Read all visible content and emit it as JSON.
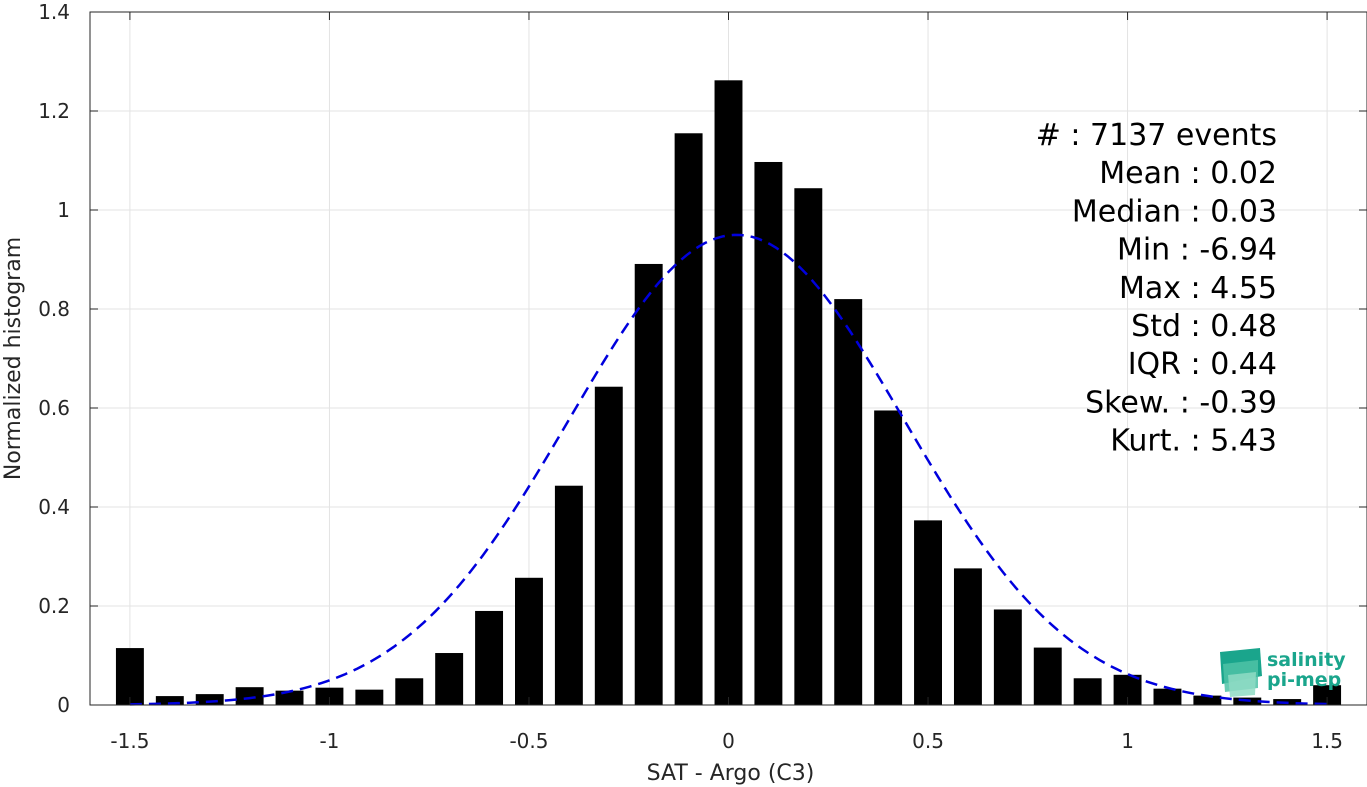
{
  "chart_data": {
    "type": "bar",
    "xlabel": "SAT - Argo (C3)",
    "ylabel": "Normalized histogram",
    "xlim": [
      -1.6,
      1.6
    ],
    "ylim": [
      0,
      1.4
    ],
    "xticks": [
      -1.5,
      -1,
      -0.5,
      0,
      0.5,
      1,
      1.5
    ],
    "xtick_labels": [
      "-1.5",
      "-1",
      "-0.5",
      "0",
      "0.5",
      "1",
      "1.5"
    ],
    "yticks": [
      0,
      0.2,
      0.4,
      0.6,
      0.8,
      1,
      1.2,
      1.4
    ],
    "ytick_labels": [
      "0",
      "0.2",
      "0.4",
      "0.6",
      "0.8",
      "1",
      "1.2",
      "1.4"
    ],
    "grid": true,
    "bar_width": 0.07,
    "bar_color": "#000000",
    "fit_color": "#0000dd",
    "bars": {
      "x": [
        -1.5,
        -1.4,
        -1.3,
        -1.2,
        -1.1,
        -1.0,
        -0.9,
        -0.8,
        -0.7,
        -0.6,
        -0.5,
        -0.4,
        -0.3,
        -0.2,
        -0.1,
        0.0,
        0.1,
        0.2,
        0.3,
        0.4,
        0.5,
        0.6,
        0.7,
        0.8,
        0.9,
        1.0,
        1.1,
        1.2,
        1.3,
        1.4,
        1.5
      ],
      "values": [
        0.115,
        0.018,
        0.022,
        0.036,
        0.029,
        0.035,
        0.031,
        0.054,
        0.105,
        0.19,
        0.257,
        0.443,
        0.643,
        0.891,
        1.155,
        1.262,
        1.097,
        1.044,
        0.82,
        0.595,
        0.373,
        0.276,
        0.193,
        0.116,
        0.054,
        0.061,
        0.033,
        0.019,
        0.015,
        0.012,
        0.04
      ]
    },
    "fit_curve": {
      "type": "gaussian",
      "mean": 0.02,
      "std": 0.42,
      "x_range": [
        -1.5,
        1.5
      ]
    },
    "annotations": [
      "#  : 7137 events",
      "Mean : 0.02",
      "Median : 0.03",
      "Min : -6.94",
      "Max : 4.55",
      "Std : 0.48",
      "IQR : 0.44",
      "Skew. : -0.39",
      "Kurt. : 5.43"
    ]
  },
  "logo": {
    "line1": "salinity",
    "line2": "pi-mep",
    "color": "#1aa58c"
  }
}
